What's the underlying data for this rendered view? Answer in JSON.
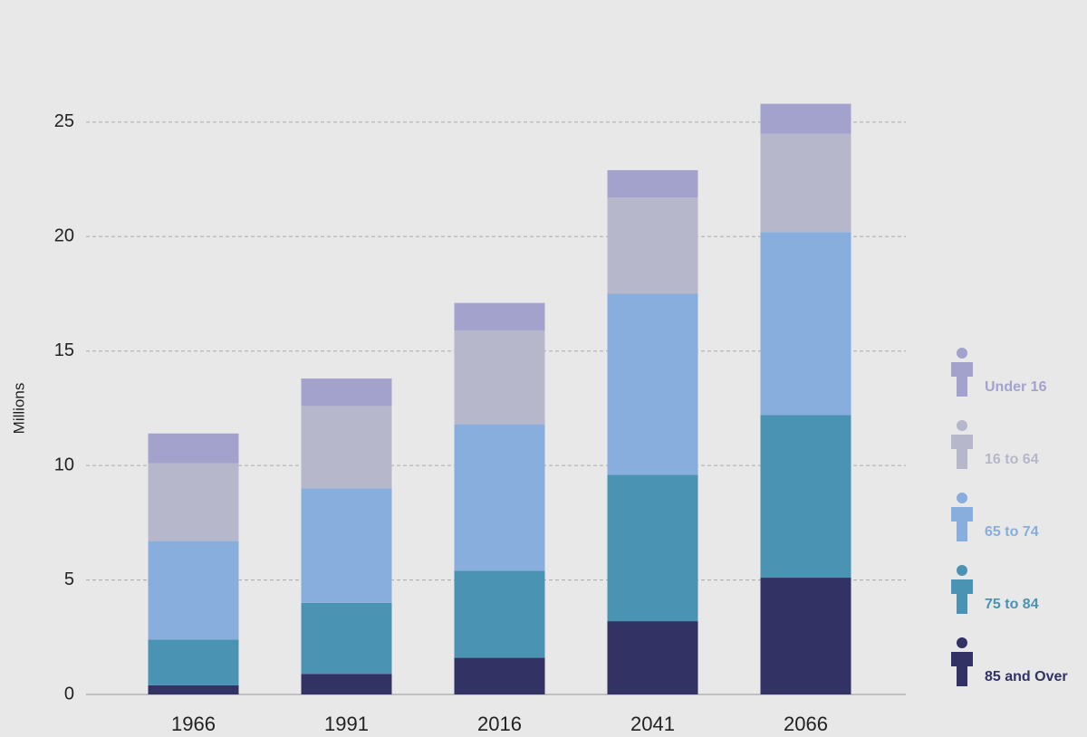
{
  "chart_data": {
    "type": "stacked_bar",
    "y_label": "Millions",
    "categories": [
      "1966",
      "1991",
      "2016",
      "2041",
      "2066"
    ],
    "series": [
      {
        "name": "85 and Over",
        "color": "#323264",
        "values": [
          0.4,
          0.9,
          1.6,
          3.2,
          5.1
        ]
      },
      {
        "name": "75 to 84",
        "color": "#4a93b3",
        "values": [
          2.0,
          3.1,
          3.8,
          6.4,
          7.1
        ]
      },
      {
        "name": "65 to 74",
        "color": "#87aedd",
        "values": [
          4.3,
          5.0,
          6.4,
          7.9,
          8.0
        ]
      },
      {
        "name": "16 to 64",
        "color": "#b6b7ca",
        "values": [
          3.4,
          3.6,
          4.1,
          4.2,
          4.3
        ]
      },
      {
        "name": "Under 16",
        "color": "#a3a2cc",
        "values": [
          1.3,
          1.2,
          1.2,
          1.2,
          1.3
        ]
      }
    ],
    "ylim": [
      0,
      28
    ],
    "yticks": [
      0,
      5,
      10,
      15,
      20,
      25
    ],
    "grid": true,
    "legend": "right"
  }
}
